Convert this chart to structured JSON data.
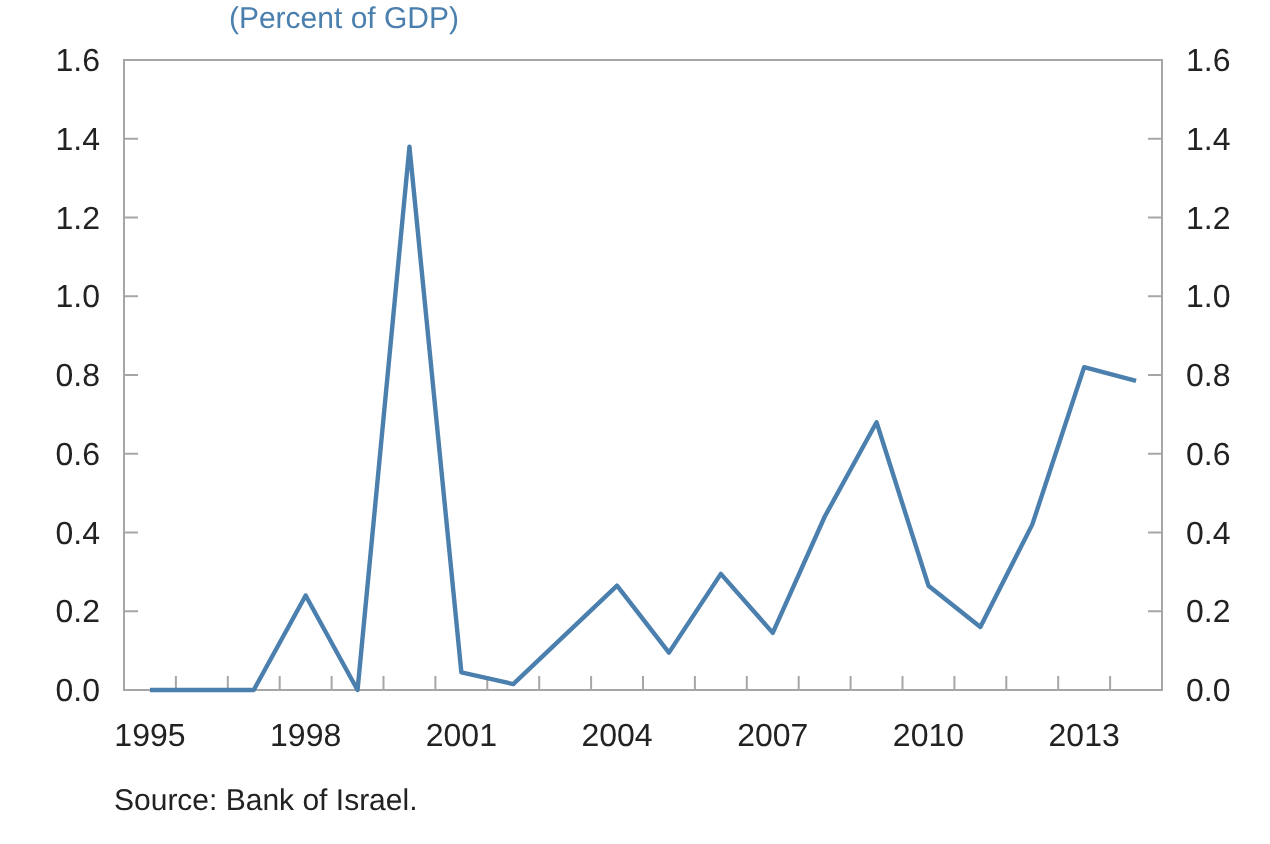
{
  "chart_data": {
    "type": "line",
    "subtitle": "(Percent of GDP)",
    "categories": [
      "1995",
      null,
      null,
      "1998",
      null,
      null,
      "2001",
      null,
      null,
      "2004",
      null,
      null,
      "2007",
      null,
      null,
      "2010",
      null,
      null,
      "2013",
      null
    ],
    "series": [
      {
        "color": "#4a7fae",
        "values": [
          0,
          0,
          0,
          0.24,
          0,
          1.38,
          0.045,
          0.015,
          0.14,
          0.265,
          0.095,
          0.295,
          0.145,
          0.44,
          0.68,
          0.265,
          0.16,
          0.42,
          0.82,
          0.785
        ]
      }
    ],
    "ylim": [
      0,
      1.6
    ],
    "yticks": [
      {
        "value": 0,
        "label": "0.0"
      },
      {
        "value": 0.2,
        "label": "0.2"
      },
      {
        "value": 0.4,
        "label": "0.4"
      },
      {
        "value": 0.6,
        "label": "0.6"
      },
      {
        "value": 0.8,
        "label": "0.8"
      },
      {
        "value": 1,
        "label": "1.0"
      },
      {
        "value": 1.2,
        "label": "1.2"
      },
      {
        "value": 1.4,
        "label": "1.4"
      },
      {
        "value": 1.6,
        "label": "1.6"
      }
    ],
    "y2lim": [
      0,
      1.6
    ],
    "y2ticks": [
      {
        "value": 0,
        "label": "0.0"
      },
      {
        "value": 0.2,
        "label": "0.2"
      },
      {
        "value": 0.4,
        "label": "0.4"
      },
      {
        "value": 0.6,
        "label": "0.6"
      },
      {
        "value": 0.8,
        "label": "0.8"
      },
      {
        "value": 1,
        "label": "1.0"
      },
      {
        "value": 1.2,
        "label": "1.2"
      },
      {
        "value": 1.4,
        "label": "1.4"
      },
      {
        "value": 1.6,
        "label": "1.6"
      }
    ],
    "annotations": [
      "Source: Bank of Israel."
    ],
    "grid": false,
    "marker": "none",
    "line_style": "solid"
  }
}
